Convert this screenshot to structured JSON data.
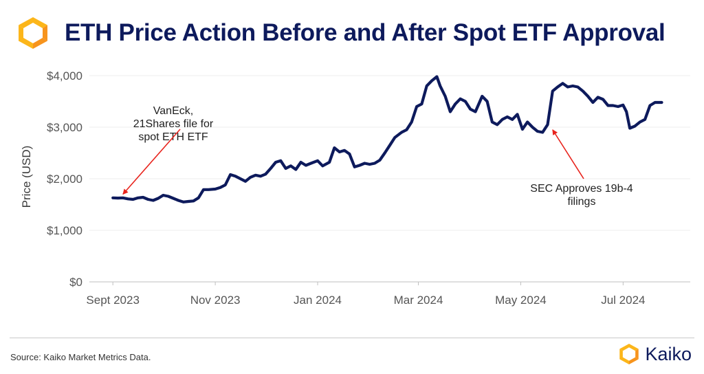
{
  "header": {
    "title": "ETH Price Action Before and After Spot ETF Approval"
  },
  "footer": {
    "source": "Source: Kaiko Market Metrics Data.",
    "brand": "Kaiko"
  },
  "colors": {
    "line": "#0d1a5c",
    "title": "#0d1a5c",
    "arrow": "#e8231c",
    "logo_orange": "#f7941d",
    "logo_yellow": "#fcb61a"
  },
  "chart_data": {
    "type": "line",
    "title": "ETH Price Action Before and After Spot ETF Approval",
    "xlabel": "",
    "ylabel": "Price (USD)",
    "ylim": [
      0,
      4000
    ],
    "xlim": [
      "2023-08-18",
      "2024-08-10"
    ],
    "y_ticks": [
      {
        "value": 0,
        "label": "$0"
      },
      {
        "value": 1000,
        "label": "$1,000"
      },
      {
        "value": 2000,
        "label": "$2,000"
      },
      {
        "value": 3000,
        "label": "$3,000"
      },
      {
        "value": 4000,
        "label": "$4,000"
      }
    ],
    "x_ticks": [
      {
        "date": "2023-09-01",
        "label": "Sept 2023"
      },
      {
        "date": "2023-11-01",
        "label": "Nov 2023"
      },
      {
        "date": "2024-01-01",
        "label": "Jan 2024"
      },
      {
        "date": "2024-03-01",
        "label": "Mar 2024"
      },
      {
        "date": "2024-05-01",
        "label": "May 2024"
      },
      {
        "date": "2024-07-01",
        "label": "Jul 2024"
      }
    ],
    "grid": true,
    "series": [
      {
        "name": "ETH Price",
        "points": [
          [
            "2023-09-01",
            1630
          ],
          [
            "2023-09-04",
            1625
          ],
          [
            "2023-09-07",
            1630
          ],
          [
            "2023-09-10",
            1610
          ],
          [
            "2023-09-13",
            1600
          ],
          [
            "2023-09-16",
            1630
          ],
          [
            "2023-09-19",
            1640
          ],
          [
            "2023-09-22",
            1600
          ],
          [
            "2023-09-25",
            1580
          ],
          [
            "2023-09-28",
            1620
          ],
          [
            "2023-10-01",
            1680
          ],
          [
            "2023-10-04",
            1660
          ],
          [
            "2023-10-07",
            1620
          ],
          [
            "2023-10-10",
            1580
          ],
          [
            "2023-10-13",
            1550
          ],
          [
            "2023-10-16",
            1560
          ],
          [
            "2023-10-19",
            1570
          ],
          [
            "2023-10-22",
            1630
          ],
          [
            "2023-10-25",
            1790
          ],
          [
            "2023-10-28",
            1790
          ],
          [
            "2023-11-01",
            1800
          ],
          [
            "2023-11-04",
            1830
          ],
          [
            "2023-11-07",
            1880
          ],
          [
            "2023-11-10",
            2080
          ],
          [
            "2023-11-13",
            2050
          ],
          [
            "2023-11-16",
            2000
          ],
          [
            "2023-11-19",
            1950
          ],
          [
            "2023-11-22",
            2030
          ],
          [
            "2023-11-25",
            2070
          ],
          [
            "2023-11-28",
            2050
          ],
          [
            "2023-12-01",
            2090
          ],
          [
            "2023-12-04",
            2200
          ],
          [
            "2023-12-07",
            2320
          ],
          [
            "2023-12-10",
            2350
          ],
          [
            "2023-12-13",
            2200
          ],
          [
            "2023-12-16",
            2250
          ],
          [
            "2023-12-19",
            2180
          ],
          [
            "2023-12-22",
            2320
          ],
          [
            "2023-12-25",
            2260
          ],
          [
            "2023-12-28",
            2300
          ],
          [
            "2024-01-01",
            2350
          ],
          [
            "2024-01-04",
            2250
          ],
          [
            "2024-01-08",
            2320
          ],
          [
            "2024-01-11",
            2600
          ],
          [
            "2024-01-14",
            2520
          ],
          [
            "2024-01-17",
            2550
          ],
          [
            "2024-01-20",
            2480
          ],
          [
            "2024-01-23",
            2230
          ],
          [
            "2024-01-26",
            2260
          ],
          [
            "2024-01-29",
            2300
          ],
          [
            "2024-02-01",
            2280
          ],
          [
            "2024-02-04",
            2300
          ],
          [
            "2024-02-07",
            2360
          ],
          [
            "2024-02-10",
            2500
          ],
          [
            "2024-02-13",
            2650
          ],
          [
            "2024-02-16",
            2800
          ],
          [
            "2024-02-20",
            2900
          ],
          [
            "2024-02-23",
            2950
          ],
          [
            "2024-02-26",
            3100
          ],
          [
            "2024-02-29",
            3400
          ],
          [
            "2024-03-03",
            3450
          ],
          [
            "2024-03-06",
            3800
          ],
          [
            "2024-03-09",
            3900
          ],
          [
            "2024-03-12",
            3980
          ],
          [
            "2024-03-14",
            3800
          ],
          [
            "2024-03-17",
            3600
          ],
          [
            "2024-03-20",
            3300
          ],
          [
            "2024-03-23",
            3450
          ],
          [
            "2024-03-26",
            3550
          ],
          [
            "2024-03-29",
            3500
          ],
          [
            "2024-04-01",
            3350
          ],
          [
            "2024-04-04",
            3300
          ],
          [
            "2024-04-08",
            3600
          ],
          [
            "2024-04-11",
            3500
          ],
          [
            "2024-04-14",
            3100
          ],
          [
            "2024-04-17",
            3050
          ],
          [
            "2024-04-20",
            3150
          ],
          [
            "2024-04-23",
            3200
          ],
          [
            "2024-04-26",
            3150
          ],
          [
            "2024-04-29",
            3250
          ],
          [
            "2024-05-02",
            2960
          ],
          [
            "2024-05-05",
            3100
          ],
          [
            "2024-05-08",
            3000
          ],
          [
            "2024-05-11",
            2920
          ],
          [
            "2024-05-14",
            2900
          ],
          [
            "2024-05-17",
            3050
          ],
          [
            "2024-05-20",
            3700
          ],
          [
            "2024-05-23",
            3780
          ],
          [
            "2024-05-26",
            3850
          ],
          [
            "2024-05-29",
            3780
          ],
          [
            "2024-06-01",
            3800
          ],
          [
            "2024-06-04",
            3780
          ],
          [
            "2024-06-07",
            3700
          ],
          [
            "2024-06-10",
            3600
          ],
          [
            "2024-06-13",
            3480
          ],
          [
            "2024-06-16",
            3580
          ],
          [
            "2024-06-19",
            3540
          ],
          [
            "2024-06-22",
            3420
          ],
          [
            "2024-06-25",
            3420
          ],
          [
            "2024-06-28",
            3400
          ],
          [
            "2024-07-01",
            3430
          ],
          [
            "2024-07-03",
            3300
          ],
          [
            "2024-07-05",
            2980
          ],
          [
            "2024-07-08",
            3020
          ],
          [
            "2024-07-11",
            3100
          ],
          [
            "2024-07-14",
            3150
          ],
          [
            "2024-07-17",
            3420
          ],
          [
            "2024-07-20",
            3480
          ],
          [
            "2024-07-24",
            3480
          ]
        ]
      }
    ],
    "annotations": [
      {
        "text_lines": [
          "VanEck,",
          "21Shares file for",
          "spot ETH ETF"
        ],
        "date": "2023-09-07",
        "value": 1700
      },
      {
        "text_lines": [
          "SEC Approves 19b-4",
          "filings"
        ],
        "date": "2024-05-20",
        "value": 2950
      }
    ]
  }
}
